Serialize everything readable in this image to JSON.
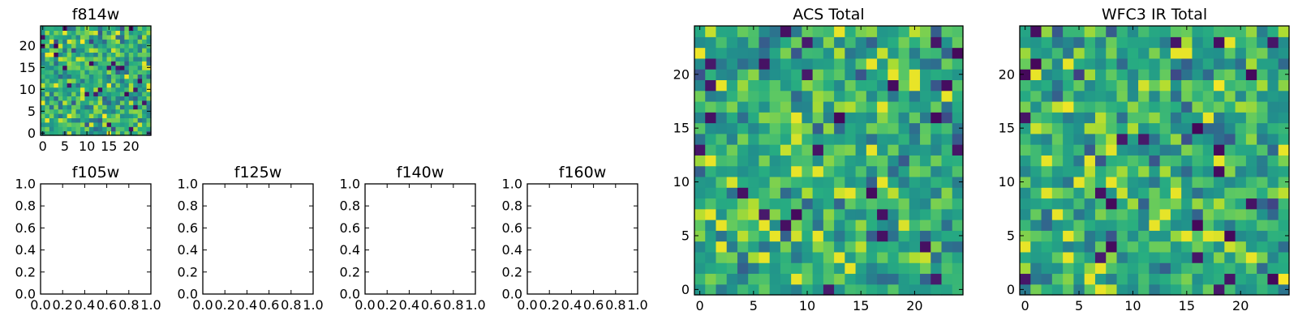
{
  "colors": {
    "background": "#ffffff",
    "axis": "#000000",
    "colormap": "viridis"
  },
  "chart_data": [
    {
      "type": "heatmap",
      "title": "f814w",
      "colormap": "viridis",
      "size": 25,
      "xlim": [
        -0.5,
        24.5
      ],
      "ylim": [
        -0.5,
        24.5
      ],
      "x_ticks": [
        0,
        5,
        10,
        15,
        20
      ],
      "y_ticks": [
        0,
        5,
        10,
        15,
        20
      ],
      "seed": 11
    },
    {
      "type": "line",
      "title": "f105w",
      "xlim": [
        0.0,
        1.0
      ],
      "ylim": [
        0.0,
        1.0
      ],
      "x_ticks": [
        "0.0",
        "0.2",
        "0.4",
        "0.6",
        "0.8",
        "1.0"
      ],
      "y_ticks": [
        "0.0",
        "0.2",
        "0.4",
        "0.6",
        "0.8",
        "1.0"
      ],
      "series": []
    },
    {
      "type": "line",
      "title": "f125w",
      "xlim": [
        0.0,
        1.0
      ],
      "ylim": [
        0.0,
        1.0
      ],
      "x_ticks": [
        "0.0",
        "0.2",
        "0.4",
        "0.6",
        "0.8",
        "1.0"
      ],
      "y_ticks": [
        "0.0",
        "0.2",
        "0.4",
        "0.6",
        "0.8",
        "1.0"
      ],
      "series": []
    },
    {
      "type": "line",
      "title": "f140w",
      "xlim": [
        0.0,
        1.0
      ],
      "ylim": [
        0.0,
        1.0
      ],
      "x_ticks": [
        "0.0",
        "0.2",
        "0.4",
        "0.6",
        "0.8",
        "1.0"
      ],
      "y_ticks": [
        "0.0",
        "0.2",
        "0.4",
        "0.6",
        "0.8",
        "1.0"
      ],
      "series": []
    },
    {
      "type": "line",
      "title": "f160w",
      "xlim": [
        0.0,
        1.0
      ],
      "ylim": [
        0.0,
        1.0
      ],
      "x_ticks": [
        "0.0",
        "0.2",
        "0.4",
        "0.6",
        "0.8",
        "1.0"
      ],
      "y_ticks": [
        "0.0",
        "0.2",
        "0.4",
        "0.6",
        "0.8",
        "1.0"
      ],
      "series": []
    },
    {
      "type": "heatmap",
      "title": "ACS Total",
      "colormap": "viridis",
      "size": 25,
      "xlim": [
        -0.5,
        24.5
      ],
      "ylim": [
        -0.5,
        24.5
      ],
      "x_ticks": [
        0,
        5,
        10,
        15,
        20
      ],
      "y_ticks": [
        0,
        5,
        10,
        15,
        20
      ],
      "seed": 23
    },
    {
      "type": "heatmap",
      "title": "WFC3 IR Total",
      "colormap": "viridis",
      "size": 25,
      "xlim": [
        -0.5,
        24.5
      ],
      "ylim": [
        -0.5,
        24.5
      ],
      "x_ticks": [
        0,
        5,
        10,
        15,
        20
      ],
      "y_ticks": [
        0,
        5,
        10,
        15,
        20
      ],
      "seed": 47
    }
  ]
}
